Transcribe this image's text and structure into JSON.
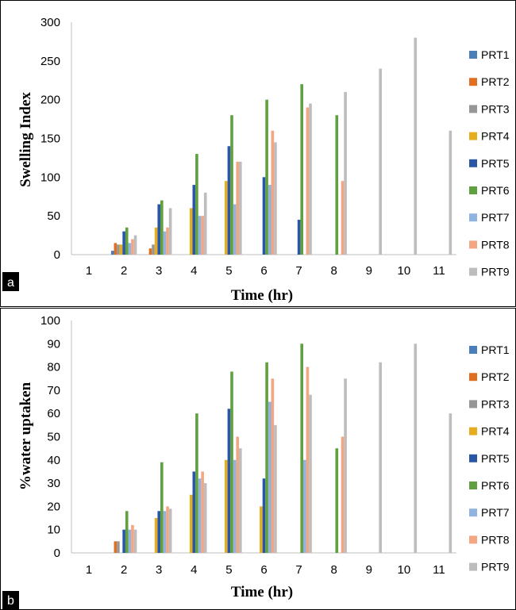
{
  "chart_data": [
    {
      "panel_tag": "a",
      "type": "bar",
      "xlabel": "Time (hr)",
      "ylabel": "Swelling Index",
      "ylim": [
        0,
        300
      ],
      "yticks": [
        0,
        50,
        100,
        150,
        200,
        250,
        300
      ],
      "categories": [
        "1",
        "2",
        "3",
        "4",
        "5",
        "6",
        "7",
        "8",
        "9",
        "10",
        "11"
      ],
      "grid": false,
      "legend_position": "right",
      "series": [
        {
          "name": "PRT1",
          "color": "#4a7ebb",
          "values": [
            null,
            5,
            null,
            null,
            null,
            null,
            null,
            null,
            null,
            null,
            null
          ]
        },
        {
          "name": "PRT2",
          "color": "#e07020",
          "values": [
            null,
            15,
            8,
            null,
            null,
            null,
            null,
            null,
            null,
            null,
            null
          ]
        },
        {
          "name": "PRT3",
          "color": "#969696",
          "values": [
            null,
            13,
            13,
            null,
            null,
            null,
            null,
            null,
            null,
            null,
            null
          ]
        },
        {
          "name": "PRT4",
          "color": "#e6ad1f",
          "values": [
            null,
            13,
            35,
            60,
            95,
            null,
            null,
            null,
            null,
            null,
            null
          ]
        },
        {
          "name": "PRT5",
          "color": "#2a56a6",
          "values": [
            null,
            30,
            65,
            90,
            140,
            100,
            45,
            null,
            null,
            null,
            null
          ]
        },
        {
          "name": "PRT6",
          "color": "#60a040",
          "values": [
            null,
            35,
            70,
            130,
            180,
            200,
            220,
            180,
            null,
            null,
            null
          ]
        },
        {
          "name": "PRT7",
          "color": "#8fb4e0",
          "values": [
            null,
            15,
            30,
            50,
            65,
            90,
            null,
            null,
            null,
            null,
            null
          ]
        },
        {
          "name": "PRT8",
          "color": "#f4a582",
          "values": [
            null,
            20,
            35,
            50,
            120,
            160,
            190,
            95,
            null,
            null,
            null
          ]
        },
        {
          "name": "PRT9",
          "color": "#bdbdbd",
          "values": [
            null,
            25,
            60,
            80,
            120,
            145,
            195,
            210,
            240,
            280,
            160
          ]
        }
      ]
    },
    {
      "panel_tag": "b",
      "type": "bar",
      "xlabel": "Time (hr)",
      "ylabel": "%water uptaken",
      "ylim": [
        0,
        100
      ],
      "yticks": [
        0,
        10,
        20,
        30,
        40,
        50,
        60,
        70,
        80,
        90,
        100
      ],
      "categories": [
        "1",
        "2",
        "3",
        "4",
        "5",
        "6",
        "7",
        "8",
        "9",
        "10",
        "11"
      ],
      "grid": false,
      "legend_position": "right",
      "series": [
        {
          "name": "PRT1",
          "color": "#4a7ebb",
          "values": [
            null,
            null,
            null,
            null,
            null,
            null,
            null,
            null,
            null,
            null,
            null
          ]
        },
        {
          "name": "PRT2",
          "color": "#e07020",
          "values": [
            null,
            5,
            null,
            null,
            null,
            null,
            null,
            null,
            null,
            null,
            null
          ]
        },
        {
          "name": "PRT3",
          "color": "#969696",
          "values": [
            null,
            5,
            null,
            null,
            null,
            null,
            null,
            null,
            null,
            null,
            null
          ]
        },
        {
          "name": "PRT4",
          "color": "#e6ad1f",
          "values": [
            null,
            null,
            15,
            25,
            40,
            20,
            null,
            null,
            null,
            null,
            null
          ]
        },
        {
          "name": "PRT5",
          "color": "#2a56a6",
          "values": [
            null,
            10,
            18,
            35,
            62,
            32,
            null,
            null,
            null,
            null,
            null
          ]
        },
        {
          "name": "PRT6",
          "color": "#60a040",
          "values": [
            null,
            18,
            39,
            60,
            78,
            82,
            90,
            45,
            null,
            null,
            null
          ]
        },
        {
          "name": "PRT7",
          "color": "#8fb4e0",
          "values": [
            null,
            10,
            18,
            32,
            40,
            65,
            40,
            null,
            null,
            null,
            null
          ]
        },
        {
          "name": "PRT8",
          "color": "#f4a582",
          "values": [
            null,
            12,
            20,
            35,
            50,
            75,
            80,
            50,
            null,
            null,
            null
          ]
        },
        {
          "name": "PRT9",
          "color": "#bdbdbd",
          "values": [
            null,
            10,
            19,
            30,
            45,
            55,
            68,
            75,
            82,
            90,
            60
          ]
        }
      ]
    }
  ]
}
